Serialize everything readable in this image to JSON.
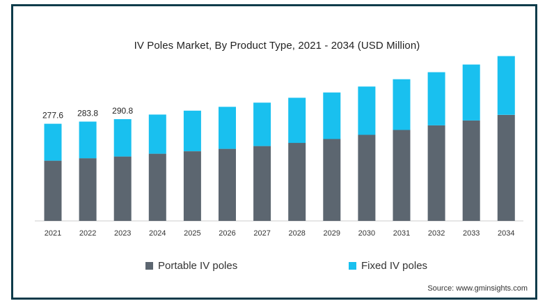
{
  "chart_data": {
    "type": "bar",
    "stacked": true,
    "title": "IV Poles Market, By Product Type, 2021 - 2034 (USD Million)",
    "xlabel": "",
    "ylabel": "",
    "categories": [
      "2021",
      "2022",
      "2023",
      "2024",
      "2025",
      "2026",
      "2027",
      "2028",
      "2029",
      "2030",
      "2031",
      "2032",
      "2033",
      "2034"
    ],
    "series": [
      {
        "name": "Portable IV poles",
        "color": "#5c6670",
        "values": [
          172,
          179,
          184,
          192,
          199,
          206,
          214,
          223,
          234,
          246,
          260,
          273,
          287,
          303
        ]
      },
      {
        "name": "Fixed IV poles",
        "color": "#19c0ef",
        "values": [
          105.6,
          104.8,
          106.8,
          112,
          116,
          120,
          124,
          129,
          133,
          138,
          145,
          152,
          160,
          168
        ]
      }
    ],
    "total_labels": [
      "277.6",
      "283.8",
      "290.8"
    ],
    "ylim": [
      0,
      480
    ],
    "grid": false,
    "legend_position": "bottom"
  },
  "source_text": "Source: www.gminsights.com"
}
